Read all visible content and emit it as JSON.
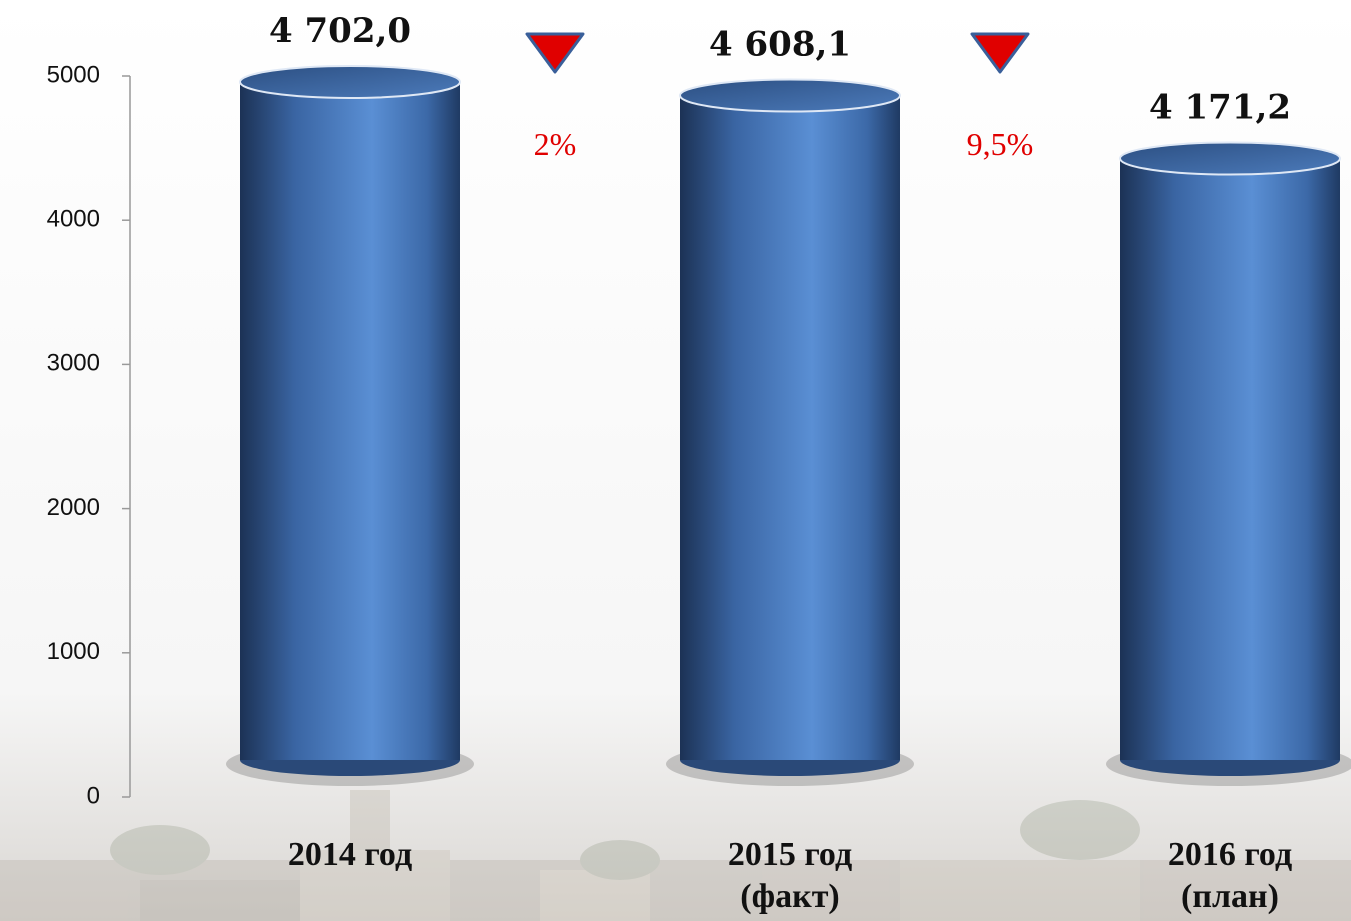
{
  "chart_data": {
    "type": "cylinder-bar",
    "categories": [
      [
        "2014 год"
      ],
      [
        "2015 год",
        "(факт)"
      ],
      [
        "2016 год",
        "(план)"
      ]
    ],
    "values": [
      4702.0,
      4608.1,
      4171.2
    ],
    "value_labels": [
      "4 702,0",
      "4 608,1",
      "4 171,2"
    ],
    "color": "#4a7cc0",
    "ylim": [
      0,
      5000
    ],
    "yticks": [
      0,
      1000,
      2000,
      3000,
      4000,
      5000
    ],
    "annotations": [
      {
        "text": "2%",
        "color": "#e00000"
      },
      {
        "text": "9,5%",
        "color": "#e00000"
      }
    ]
  }
}
